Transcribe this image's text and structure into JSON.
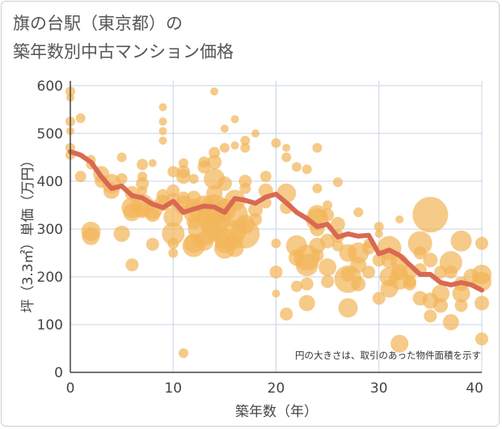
{
  "title_line1": "旗の台駅（東京都）の",
  "title_line2": "築年数別中古マンション価格",
  "chart_data": {
    "type": "scatter",
    "xlabel": "築年数（年）",
    "ylabel": "坪（3.3㎡）単価（万円）",
    "xlim": [
      0,
      40
    ],
    "ylim": [
      0,
      610
    ],
    "xticks": [
      0,
      10,
      20,
      30,
      40
    ],
    "yticks": [
      0,
      100,
      200,
      300,
      400,
      500,
      600
    ],
    "grid": true,
    "note": "円の大きさは、取引のあった物件面積を示す",
    "colors": {
      "bubble": "#f2b65a",
      "trend": "#d96a52",
      "grid": "#c9d4e6",
      "axis": "#444444"
    },
    "bubbles": [
      [
        0,
        588,
        6
      ],
      [
        0,
        575,
        5
      ],
      [
        0,
        525,
        6
      ],
      [
        0,
        505,
        5
      ],
      [
        0,
        470,
        6
      ],
      [
        0,
        455,
        6
      ],
      [
        1,
        532,
        6
      ],
      [
        1,
        410,
        7
      ],
      [
        2,
        445,
        6
      ],
      [
        2,
        435,
        6
      ],
      [
        2,
        295,
        12
      ],
      [
        2,
        285,
        11
      ],
      [
        3,
        415,
        10
      ],
      [
        3,
        400,
        8
      ],
      [
        4,
        395,
        12
      ],
      [
        4,
        380,
        10
      ],
      [
        5,
        450,
        6
      ],
      [
        5,
        405,
        7
      ],
      [
        5,
        290,
        10
      ],
      [
        6,
        375,
        9
      ],
      [
        6,
        345,
        13
      ],
      [
        6,
        335,
        11
      ],
      [
        6,
        225,
        8
      ],
      [
        7,
        435,
        7
      ],
      [
        7,
        410,
        6
      ],
      [
        7,
        395,
        8
      ],
      [
        7,
        380,
        6
      ],
      [
        7,
        350,
        14
      ],
      [
        7,
        340,
        10
      ],
      [
        8,
        438,
        5
      ],
      [
        8,
        340,
        12
      ],
      [
        8,
        330,
        9
      ],
      [
        8,
        268,
        8
      ],
      [
        9,
        555,
        5
      ],
      [
        9,
        525,
        5
      ],
      [
        9,
        505,
        5
      ],
      [
        9,
        485,
        5
      ],
      [
        9,
        370,
        8
      ],
      [
        9,
        355,
        10
      ],
      [
        9,
        350,
        7
      ],
      [
        10,
        420,
        7
      ],
      [
        10,
        380,
        8
      ],
      [
        10,
        360,
        9
      ],
      [
        10,
        325,
        12
      ],
      [
        10,
        290,
        14
      ],
      [
        10,
        270,
        7
      ],
      [
        10,
        250,
        6
      ],
      [
        11,
        438,
        6
      ],
      [
        11,
        420,
        8
      ],
      [
        11,
        410,
        9
      ],
      [
        11,
        365,
        8
      ],
      [
        11,
        350,
        12
      ],
      [
        11,
        340,
        6
      ],
      [
        11,
        40,
        6
      ],
      [
        12,
        405,
        6
      ],
      [
        12,
        365,
        9
      ],
      [
        12,
        345,
        11
      ],
      [
        12,
        335,
        13
      ],
      [
        12,
        315,
        9
      ],
      [
        12,
        270,
        12
      ],
      [
        12,
        265,
        14
      ],
      [
        13,
        440,
        7
      ],
      [
        13,
        430,
        8
      ],
      [
        13,
        350,
        12
      ],
      [
        13,
        300,
        20
      ],
      [
        13,
        275,
        12
      ],
      [
        14,
        588,
        5
      ],
      [
        14,
        460,
        7
      ],
      [
        14,
        440,
        9
      ],
      [
        14,
        405,
        13
      ],
      [
        14,
        375,
        10
      ],
      [
        14,
        340,
        19
      ],
      [
        14,
        325,
        21
      ],
      [
        14,
        305,
        16
      ],
      [
        15,
        510,
        5
      ],
      [
        15,
        470,
        6
      ],
      [
        15,
        395,
        9
      ],
      [
        15,
        340,
        14
      ],
      [
        15,
        280,
        13
      ],
      [
        15,
        270,
        12
      ],
      [
        15,
        260,
        13
      ],
      [
        16,
        530,
        5
      ],
      [
        16,
        475,
        5
      ],
      [
        16,
        360,
        13
      ],
      [
        16,
        330,
        16
      ],
      [
        16,
        295,
        14
      ],
      [
        16,
        275,
        10
      ],
      [
        16,
        260,
        11
      ],
      [
        17,
        485,
        6
      ],
      [
        17,
        470,
        6
      ],
      [
        17,
        400,
        8
      ],
      [
        17,
        385,
        7
      ],
      [
        17,
        310,
        12
      ],
      [
        17,
        290,
        18
      ],
      [
        18,
        500,
        5
      ],
      [
        18,
        340,
        9
      ],
      [
        18,
        320,
        8
      ],
      [
        19,
        410,
        7
      ],
      [
        19,
        380,
        9
      ],
      [
        19,
        355,
        7
      ],
      [
        20,
        480,
        6
      ],
      [
        20,
        270,
        6
      ],
      [
        20,
        210,
        8
      ],
      [
        20,
        165,
        5
      ],
      [
        21,
        470,
        5
      ],
      [
        21,
        450,
        6
      ],
      [
        21,
        375,
        12
      ],
      [
        21,
        345,
        8
      ],
      [
        21,
        122,
        8
      ],
      [
        22,
        430,
        6
      ],
      [
        22,
        265,
        13
      ],
      [
        22,
        240,
        10
      ],
      [
        22,
        180,
        7
      ],
      [
        23,
        425,
        6
      ],
      [
        23,
        240,
        16
      ],
      [
        23,
        225,
        14
      ],
      [
        23,
        185,
        8
      ],
      [
        23,
        145,
        10
      ],
      [
        24,
        470,
        6
      ],
      [
        24,
        385,
        6
      ],
      [
        24,
        330,
        12
      ],
      [
        24,
        320,
        14
      ],
      [
        24,
        300,
        9
      ],
      [
        24,
        265,
        10
      ],
      [
        24,
        245,
        8
      ],
      [
        25,
        350,
        6
      ],
      [
        25,
        330,
        8
      ],
      [
        25,
        275,
        9
      ],
      [
        25,
        220,
        11
      ],
      [
        25,
        190,
        8
      ],
      [
        26,
        398,
        6
      ],
      [
        26,
        310,
        9
      ],
      [
        26,
        285,
        8
      ],
      [
        26,
        265,
        7
      ],
      [
        27,
        250,
        11
      ],
      [
        27,
        205,
        9
      ],
      [
        27,
        195,
        17
      ],
      [
        27,
        135,
        12
      ],
      [
        28,
        335,
        6
      ],
      [
        28,
        250,
        13
      ],
      [
        28,
        225,
        10
      ],
      [
        28,
        185,
        9
      ],
      [
        29,
        270,
        6
      ],
      [
        29,
        260,
        8
      ],
      [
        29,
        210,
        8
      ],
      [
        30,
        305,
        6
      ],
      [
        30,
        290,
        5
      ],
      [
        30,
        235,
        8
      ],
      [
        30,
        155,
        8
      ],
      [
        31,
        260,
        15
      ],
      [
        31,
        235,
        10
      ],
      [
        31,
        200,
        12
      ],
      [
        31,
        175,
        11
      ],
      [
        32,
        320,
        5
      ],
      [
        32,
        230,
        11
      ],
      [
        32,
        210,
        10
      ],
      [
        32,
        195,
        13
      ],
      [
        32,
        60,
        11
      ],
      [
        33,
        210,
        9
      ],
      [
        33,
        190,
        8
      ],
      [
        33,
        185,
        8
      ],
      [
        34,
        270,
        15
      ],
      [
        34,
        250,
        8
      ],
      [
        34,
        215,
        8
      ],
      [
        34,
        155,
        9
      ],
      [
        35,
        330,
        22
      ],
      [
        35,
        235,
        9
      ],
      [
        35,
        150,
        10
      ],
      [
        35,
        118,
        8
      ],
      [
        36,
        210,
        8
      ],
      [
        36,
        165,
        11
      ],
      [
        36,
        140,
        9
      ],
      [
        37,
        230,
        14
      ],
      [
        37,
        210,
        8
      ],
      [
        37,
        105,
        10
      ],
      [
        38,
        275,
        13
      ],
      [
        38,
        185,
        9
      ],
      [
        38,
        165,
        11
      ],
      [
        38,
        140,
        8
      ],
      [
        39,
        200,
        10
      ],
      [
        40,
        270,
        8
      ],
      [
        40,
        205,
        12
      ],
      [
        40,
        190,
        12
      ],
      [
        40,
        145,
        9
      ],
      [
        40,
        70,
        8
      ]
    ],
    "trend": {
      "x": [
        0,
        1,
        2,
        3,
        4,
        5,
        6,
        7,
        8,
        9,
        10,
        11,
        12,
        13,
        14,
        15,
        16,
        17,
        18,
        19,
        20,
        21,
        22,
        23,
        24,
        25,
        26,
        27,
        28,
        29,
        30,
        31,
        32,
        33,
        34,
        35,
        36,
        37,
        38,
        39,
        40
      ],
      "y": [
        462,
        455,
        440,
        410,
        385,
        390,
        370,
        365,
        352,
        345,
        358,
        335,
        342,
        348,
        346,
        335,
        364,
        360,
        354,
        367,
        373,
        355,
        335,
        322,
        305,
        310,
        283,
        290,
        285,
        287,
        248,
        256,
        245,
        225,
        205,
        205,
        188,
        183,
        188,
        183,
        172
      ]
    }
  }
}
